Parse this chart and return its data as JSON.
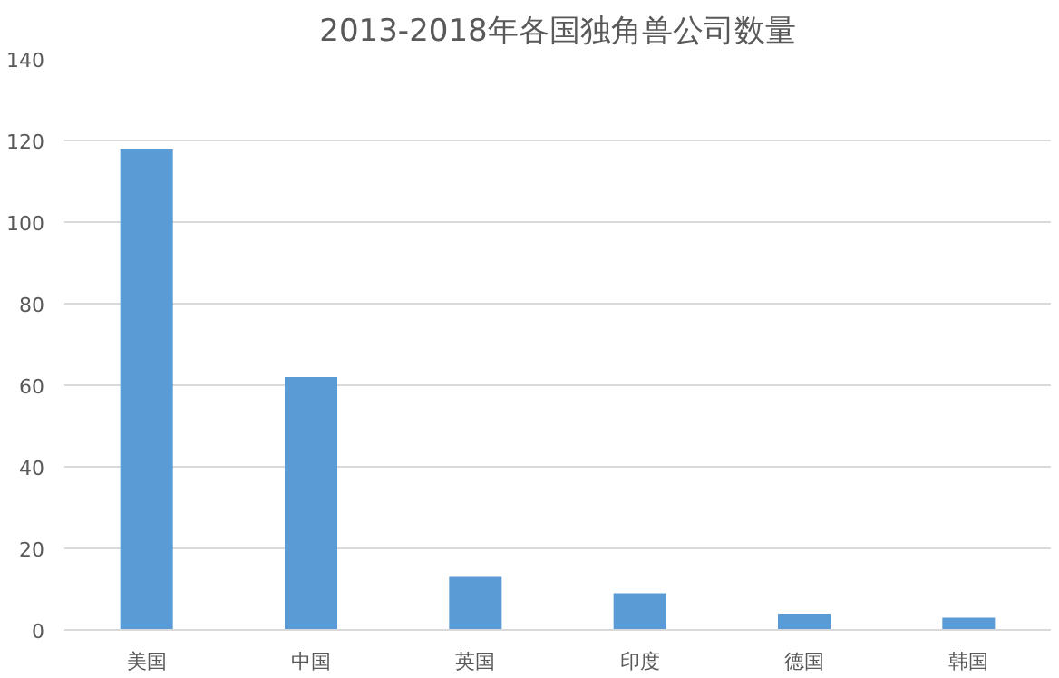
{
  "chart_data": {
    "type": "bar",
    "title": "2013-2018年各国独角兽公司数量",
    "categories": [
      "美国",
      "中国",
      "英国",
      "印度",
      "德国",
      "韩国"
    ],
    "values": [
      118,
      62,
      13,
      9,
      4,
      3
    ],
    "color": "#5b9bd5",
    "ylim": [
      0,
      140
    ],
    "yticks": [
      0,
      20,
      40,
      60,
      80,
      100,
      120,
      140
    ],
    "grid": "y"
  }
}
